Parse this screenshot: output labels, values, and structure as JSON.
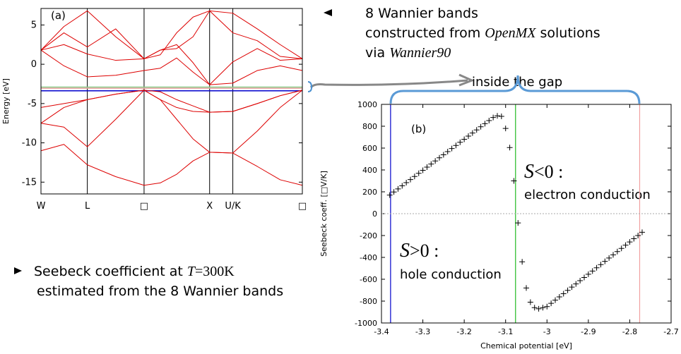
{
  "chart_data": [
    {
      "type": "line",
      "label": "(a)",
      "ylabel": "Energy [eV]",
      "x": [
        0,
        0.35,
        0.707,
        1.14,
        1.573,
        1.82,
        2.07,
        2.32,
        2.573,
        2.927,
        3.3,
        3.65,
        3.988
      ],
      "xlim": [
        0,
        3.988
      ],
      "xticks": [
        {
          "value": 0,
          "label": "W"
        },
        {
          "value": 0.707,
          "label": "L"
        },
        {
          "value": 1.573,
          "label": "□"
        },
        {
          "value": 2.573,
          "label": "X"
        },
        {
          "value": 2.927,
          "label": "U/K"
        },
        {
          "value": 3.988,
          "label": "□"
        }
      ],
      "tick_vlines": true,
      "ylim": [
        -16.5,
        7.1
      ],
      "yticks": [
        -15,
        -10,
        -5,
        0,
        5
      ],
      "series": [
        {
          "color": "#dd0000",
          "values": [
            -11,
            -10.2,
            -12.8,
            -14.3,
            -15.4,
            -15.1,
            -14,
            -12.3,
            -11.2,
            -11.3,
            -13,
            -14.7,
            -15.4
          ]
        },
        {
          "color": "#dd0000",
          "values": [
            -7.5,
            -8,
            -10.5,
            -7,
            -3.3,
            -4.5,
            -7,
            -9.5,
            -11.2,
            -11.3,
            -8.5,
            -5.5,
            -3.3
          ]
        },
        {
          "color": "#dd0000",
          "values": [
            -7.5,
            -5.5,
            -4.5,
            -3.8,
            -3.3,
            -4.5,
            -5.5,
            -6,
            -6.1,
            -6,
            -5,
            -4,
            -3.3
          ]
        },
        {
          "color": "#dd0000",
          "values": [
            -5.5,
            -5,
            -4.5,
            -3.8,
            -3.3,
            -3.5,
            -4.5,
            -5.3,
            -6.1,
            -6,
            -5,
            -4,
            -3.3
          ]
        },
        {
          "color": "#dd0000",
          "values": [
            1.8,
            -0.2,
            -1.6,
            -1.4,
            -0.8,
            -0.5,
            0.8,
            -1,
            -2.6,
            -2.4,
            -0.8,
            -0.2,
            -0.8
          ]
        },
        {
          "color": "#dd0000",
          "values": [
            1.8,
            2.5,
            1.3,
            0.5,
            0.7,
            1.8,
            2.5,
            0.2,
            -2.6,
            0.3,
            2,
            0.5,
            0.7
          ]
        },
        {
          "color": "#dd0000",
          "values": [
            1.8,
            4,
            2.2,
            4.5,
            0.7,
            1.8,
            2,
            3.5,
            6.8,
            4,
            3,
            1,
            0.7
          ]
        },
        {
          "color": "#dd0000",
          "values": [
            1.8,
            4.8,
            6.8,
            3.5,
            0.7,
            1.2,
            4,
            6,
            6.8,
            6.5,
            4.5,
            2.5,
            0.7
          ]
        }
      ],
      "hlines": [
        {
          "value": -2.9,
          "color": "#88cc88"
        },
        {
          "value": -3.05,
          "color": "#e8a0a0"
        },
        {
          "value": -3.38,
          "color": "#0000cc"
        }
      ]
    },
    {
      "type": "scatter",
      "label": "(b)",
      "xlabel": "Chemical potential [eV]",
      "ylabel": "Seebeck coeff. [□V/K]",
      "marker": "+",
      "color": "#000000",
      "x": [
        -3.38,
        -3.37,
        -3.36,
        -3.35,
        -3.34,
        -3.33,
        -3.32,
        -3.31,
        -3.3,
        -3.29,
        -3.28,
        -3.27,
        -3.26,
        -3.25,
        -3.24,
        -3.23,
        -3.22,
        -3.21,
        -3.2,
        -3.19,
        -3.18,
        -3.17,
        -3.16,
        -3.15,
        -3.14,
        -3.13,
        -3.12,
        -3.11,
        -3.1,
        -3.09,
        -3.08,
        -3.07,
        -3.06,
        -3.05,
        -3.04,
        -3.03,
        -3.02,
        -3.01,
        -3,
        -2.99,
        -2.98,
        -2.97,
        -2.96,
        -2.95,
        -2.94,
        -2.93,
        -2.92,
        -2.91,
        -2.9,
        -2.89,
        -2.88,
        -2.87,
        -2.86,
        -2.85,
        -2.84,
        -2.83,
        -2.82,
        -2.81,
        -2.8,
        -2.79,
        -2.78,
        -2.77
      ],
      "y": [
        170,
        198,
        227,
        255,
        284,
        312,
        340,
        369,
        397,
        426,
        454,
        482,
        511,
        539,
        568,
        596,
        624,
        653,
        681,
        710,
        738,
        766,
        795,
        823,
        852,
        880,
        895,
        890,
        780,
        605,
        300,
        -85,
        -440,
        -680,
        -810,
        -860,
        -870,
        -860,
        -850,
        -820,
        -791,
        -761,
        -732,
        -702,
        -672,
        -643,
        -613,
        -584,
        -554,
        -525,
        -495,
        -466,
        -436,
        -406,
        -377,
        -347,
        -318,
        -288,
        -259,
        -229,
        -200,
        -170
      ],
      "xlim": [
        -3.4,
        -2.7
      ],
      "xticks": [
        -3.4,
        -3.3,
        -3.2,
        -3.1,
        -3,
        -2.9,
        -2.8,
        -2.7
      ],
      "ylim": [
        -1000,
        1000
      ],
      "yticks": [
        -1000,
        -800,
        -600,
        -400,
        -200,
        0,
        200,
        400,
        600,
        800,
        1000
      ],
      "zero_line": true,
      "vlines": [
        {
          "value": -3.378,
          "color": "#0000cc"
        },
        {
          "value": -3.076,
          "color": "#22bb22"
        },
        {
          "value": -2.776,
          "color": "#f0a0a0"
        }
      ]
    }
  ],
  "annotations": {
    "bands_note": [
      "8 Wannier bands",
      [
        "constructed from ",
        "OpenMX",
        "  solutions"
      ],
      [
        "via ",
        "Wannier90"
      ]
    ],
    "seebeck_note": [
      [
        "Seebeck coefficient at ",
        "T",
        "=300K"
      ],
      "estimated from the 8 Wannier bands"
    ],
    "gap": "inside the gap",
    "negative": [
      "S",
      "<0 :",
      "electron conduction"
    ],
    "positive": [
      "S",
      ">0 :",
      "hole conduction"
    ]
  }
}
